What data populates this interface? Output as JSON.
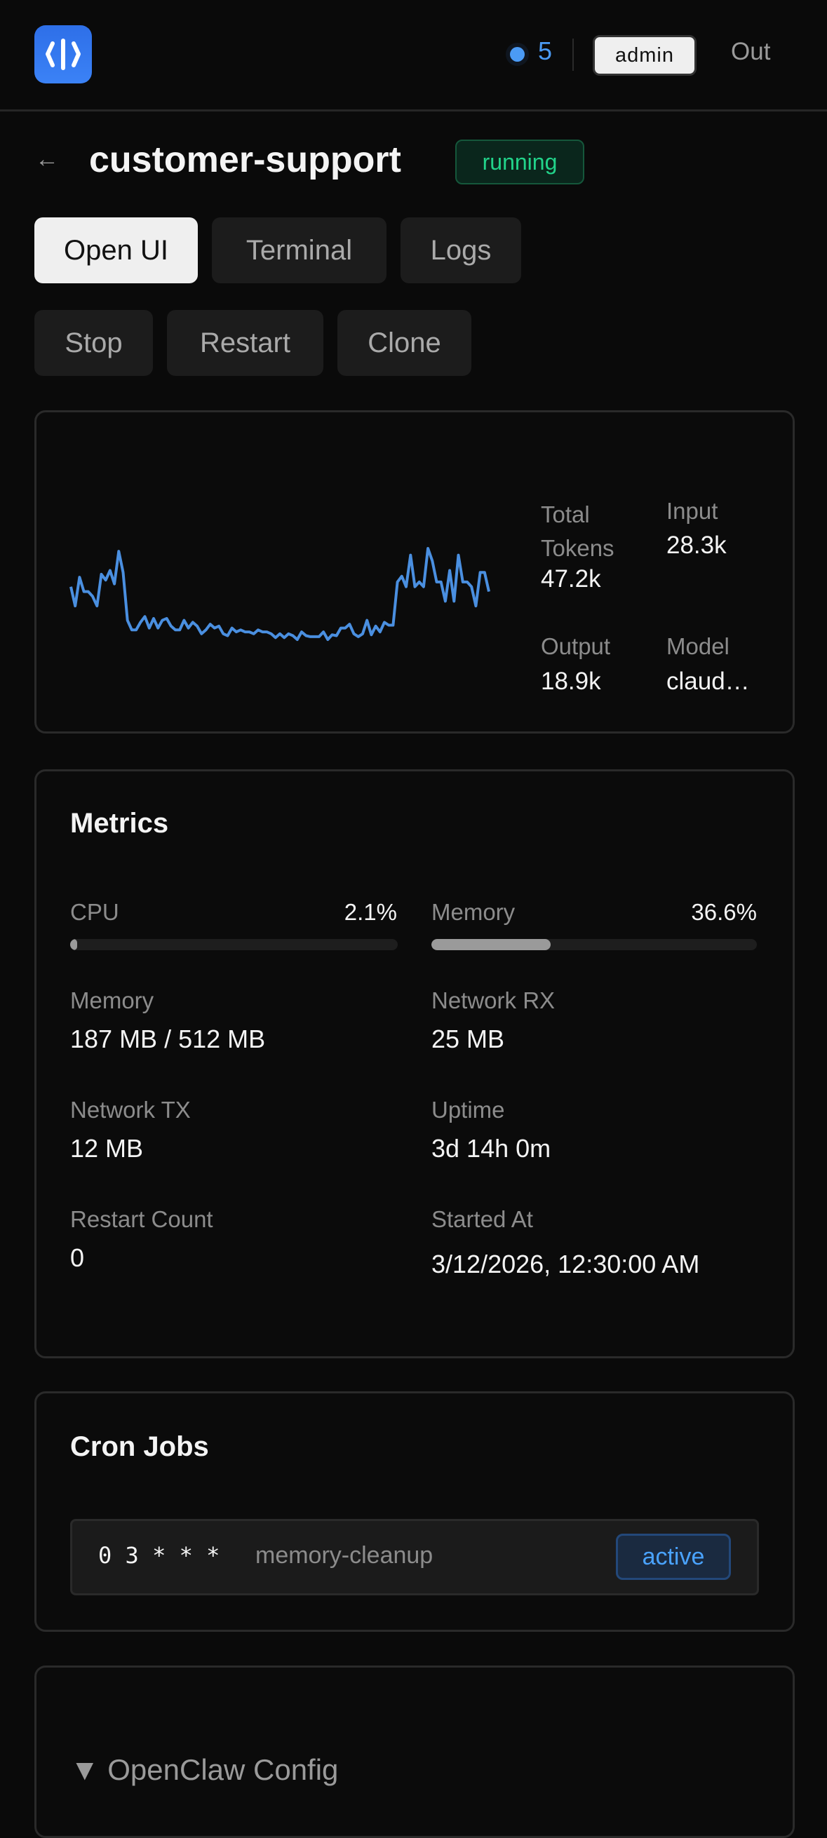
{
  "header": {
    "logo_icon": "code-bracket-logo-icon",
    "notification_count": "5",
    "user_label": "admin",
    "logout_label": "Out",
    "accent_color": "#3b82f6"
  },
  "page": {
    "back_icon": "arrow-left-icon",
    "back_label": "←",
    "title": "customer-support",
    "status": "running",
    "status_color": "#22d38a"
  },
  "actions": {
    "row1": [
      "Open UI",
      "Terminal",
      "Logs"
    ],
    "row2": [
      "Stop",
      "Restart",
      "Clone"
    ]
  },
  "tokens": {
    "total_label": "Total Tokens",
    "total_label_line1": "Total",
    "total_label_line2": "Tokens",
    "total_value": "47.2k",
    "input_label": "Input",
    "input_value": "28.3k",
    "output_label": "Output",
    "output_value": "18.9k",
    "model_label": "Model",
    "model_value": "claud…",
    "sparkline_color": "#4a8fe0"
  },
  "chart_data": {
    "type": "line",
    "title": "",
    "values": [
      55,
      35,
      65,
      50,
      50,
      45,
      35,
      68,
      62,
      72,
      58,
      92,
      70,
      20,
      10,
      10,
      18,
      24,
      12,
      22,
      12,
      20,
      22,
      14,
      10,
      10,
      20,
      12,
      18,
      14,
      6,
      10,
      16,
      12,
      14,
      6,
      4,
      12,
      8,
      10,
      8,
      8,
      6,
      10,
      8,
      8,
      6,
      2,
      6,
      2,
      6,
      4,
      0,
      8,
      4,
      3,
      3,
      3,
      8,
      0,
      5,
      4,
      12,
      12,
      16,
      6,
      3,
      6,
      20,
      5,
      14,
      8,
      18,
      15,
      15,
      60,
      66,
      55,
      88,
      55,
      60,
      55,
      95,
      82,
      60,
      60,
      40,
      72,
      40,
      88,
      60,
      60,
      55,
      35,
      70,
      70,
      50
    ],
    "axes": "none",
    "grid": false
  },
  "metrics": {
    "title": "Metrics",
    "cpu": {
      "label": "CPU",
      "value": "2.1%",
      "percent": 2.1
    },
    "memory_pct": {
      "label": "Memory",
      "value": "36.6%",
      "percent": 36.6
    },
    "items": [
      {
        "label": "Memory",
        "value": "187 MB / 512 MB"
      },
      {
        "label": "Network RX",
        "value": "25 MB"
      },
      {
        "label": "Network TX",
        "value": "12 MB"
      },
      {
        "label": "Uptime",
        "value": "3d 14h 0m"
      },
      {
        "label": "Restart Count",
        "value": "0"
      },
      {
        "label": "Started At",
        "value": "3/12/2026, 12:30:00 AM"
      }
    ]
  },
  "cron": {
    "title": "Cron Jobs",
    "jobs": [
      {
        "schedule": "0 3 * * *",
        "name": "memory-cleanup",
        "status": "active"
      }
    ]
  },
  "config": {
    "toggle_icon": "triangle-down-icon",
    "title": "▼ OpenClaw Config"
  }
}
